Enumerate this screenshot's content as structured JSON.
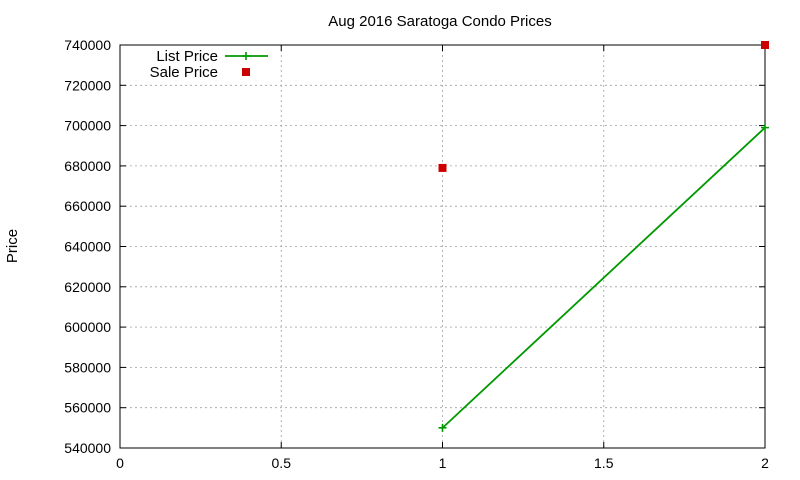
{
  "chart_data": {
    "type": "line",
    "title": "Aug 2016 Saratoga Condo Prices",
    "xlabel": "",
    "ylabel": "Price",
    "xlim": [
      0,
      2
    ],
    "ylim": [
      540000,
      740000
    ],
    "x_ticks": [
      0,
      0.5,
      1,
      1.5,
      2
    ],
    "x_tick_labels": [
      "0",
      "0.5",
      "1",
      "1.5",
      "2"
    ],
    "y_ticks": [
      540000,
      560000,
      580000,
      600000,
      620000,
      640000,
      660000,
      680000,
      700000,
      720000,
      740000
    ],
    "y_tick_labels": [
      "540000",
      "560000",
      "580000",
      "600000",
      "620000",
      "640000",
      "660000",
      "680000",
      "700000",
      "720000",
      "740000"
    ],
    "grid": true,
    "legend_position": "top-left",
    "series": [
      {
        "name": "List Price",
        "style": "linespoints",
        "marker": "plus",
        "color": "#009900",
        "x": [
          1,
          2
        ],
        "y": [
          550000,
          699000
        ]
      },
      {
        "name": "Sale Price",
        "style": "points",
        "marker": "square",
        "color": "#cc0000",
        "x": [
          1,
          2
        ],
        "y": [
          679000,
          740000
        ]
      }
    ]
  }
}
